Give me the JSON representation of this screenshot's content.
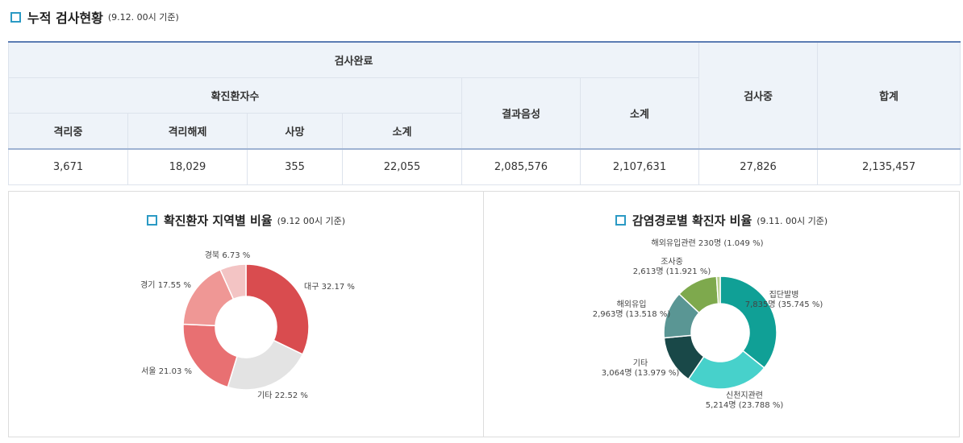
{
  "heading": {
    "title": "누적 검사현황",
    "subtitle": "(9.12. 00시 기준)"
  },
  "table": {
    "h_test_done": "검사완료",
    "h_confirmed": "확진환자수",
    "h_isolating": "격리중",
    "h_released": "격리해제",
    "h_death": "사망",
    "h_subtotal1": "소계",
    "h_negative": "결과음성",
    "h_subtotal2": "소계",
    "h_testing": "검사중",
    "h_total": "합계",
    "row": {
      "isolating": "3,671",
      "released": "18,029",
      "death": "355",
      "subtotal1": "22,055",
      "negative": "2,085,576",
      "subtotal2": "2,107,631",
      "testing": "27,826",
      "total": "2,135,457"
    }
  },
  "region_panel": {
    "title": "확진환자 지역별 비율",
    "subtitle": "(9.12 00시 기준)"
  },
  "route_panel": {
    "title": "감염경로별 확진자 비율",
    "subtitle": "(9.11. 00시 기준)"
  },
  "chart_data": [
    {
      "type": "pie",
      "title": "확진환자 지역별 비율",
      "slices": [
        {
          "label": "대구 32.17 %",
          "value": 32.17,
          "color": "#d94c4f"
        },
        {
          "label": "기타 22.52 %",
          "value": 22.52,
          "color": "#e3e3e3"
        },
        {
          "label": "서울 21.03 %",
          "value": 21.03,
          "color": "#e87072"
        },
        {
          "label": "경기 17.55 %",
          "value": 17.55,
          "color": "#ef9795"
        },
        {
          "label": "경북 6.73 %",
          "value": 6.73,
          "color": "#f3c4c4"
        }
      ]
    },
    {
      "type": "pie",
      "title": "감염경로별 확진자 비율",
      "slices": [
        {
          "label1": "집단발병",
          "label2": "7,835명 (35.745 %)",
          "value": 35.745,
          "color": "#10a096"
        },
        {
          "label1": "신천지관련",
          "label2": "5,214명 (23.788 %)",
          "value": 23.788,
          "color": "#47d1cb"
        },
        {
          "label1": "기타",
          "label2": "3,064명 (13.979 %)",
          "value": 13.979,
          "color": "#194848"
        },
        {
          "label1": "해외유입",
          "label2": "2,963명 (13.518 %)",
          "value": 13.518,
          "color": "#5a9694"
        },
        {
          "label1": "조사중",
          "label2": "2,613명 (11.921 %)",
          "value": 11.921,
          "color": "#7ea94d"
        },
        {
          "label1": "해외유입관련 230명 (1.049 %)",
          "label2": "",
          "value": 1.049,
          "color": "#b6cf8c"
        }
      ]
    }
  ]
}
